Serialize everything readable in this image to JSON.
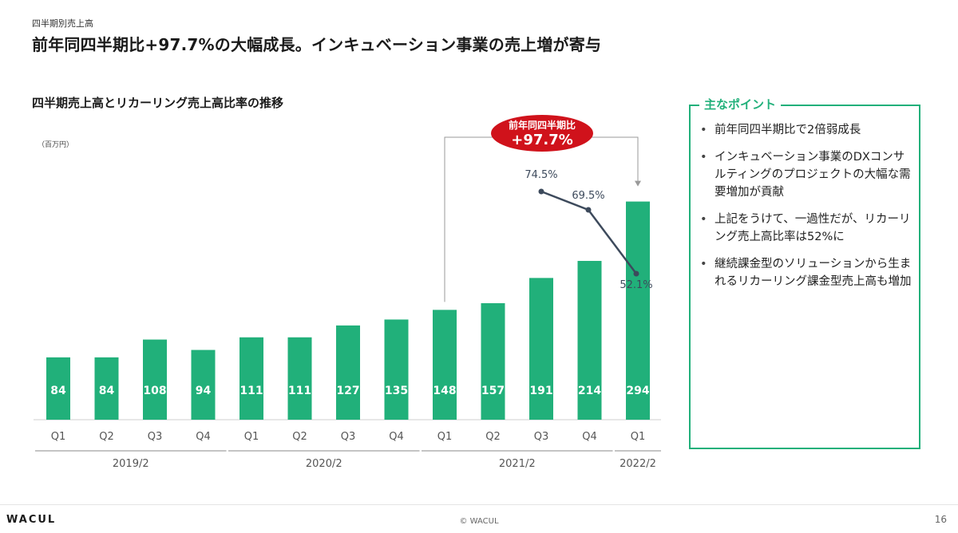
{
  "header": {
    "section_label": "四半期別売上高",
    "headline": "前年同四半期比+97.7%の大幅成長。インキュベーション事業の売上増が寄与"
  },
  "chart_data": {
    "type": "bar",
    "title": "四半期売上高とリカーリング売上高比率の推移",
    "unit": "（百万円）",
    "categories": [
      "Q1",
      "Q2",
      "Q3",
      "Q4",
      "Q1",
      "Q2",
      "Q3",
      "Q4",
      "Q1",
      "Q2",
      "Q3",
      "Q4",
      "Q1"
    ],
    "groups": [
      {
        "label": "2019/2",
        "start": 0,
        "end": 3
      },
      {
        "label": "2020/2",
        "start": 4,
        "end": 7
      },
      {
        "label": "2021/2",
        "start": 8,
        "end": 11
      },
      {
        "label": "2022/2",
        "start": 12,
        "end": 12
      }
    ],
    "series": [
      {
        "values": [
          84,
          84,
          108,
          94,
          111,
          111,
          127,
          135,
          148,
          157,
          191,
          214,
          294
        ],
        "color": "#21b07a"
      }
    ],
    "line_series": {
      "indices": [
        10,
        11,
        12
      ],
      "values": [
        74.5,
        69.5,
        52.1
      ],
      "labels": [
        "74.5%",
        "69.5%",
        "52.1%"
      ],
      "color": "#3d4a5c"
    },
    "ylim": [
      0,
      300
    ],
    "grid": false,
    "callout": {
      "line1": "前年同四半期比",
      "line2": "+97.7%",
      "from_index": 8,
      "to_index": 12,
      "color": "#d0121b"
    }
  },
  "key_points": {
    "title": "主なポイント",
    "items": [
      "前年同四半期比で2倍弱成長",
      "インキュベーション事業のDXコンサルティングのプロジェクトの大幅な需要増加が貢献",
      "上記をうけて、一過性だが、リカーリング売上高比率は52%に",
      "継続課金型のソリューションから生まれるリカーリング課金型売上高も増加"
    ]
  },
  "footer": {
    "logo": "WACUL",
    "copyright": "© WACUL",
    "page": "16"
  }
}
